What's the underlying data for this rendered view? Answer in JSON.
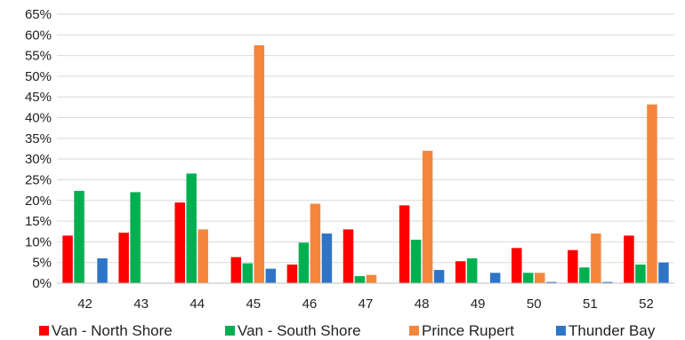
{
  "chart_data": {
    "type": "bar",
    "categories": [
      "42",
      "43",
      "44",
      "45",
      "46",
      "47",
      "48",
      "49",
      "50",
      "51",
      "52"
    ],
    "series": [
      {
        "name": "Van - North Shore",
        "color": "#ff0000",
        "values": [
          11.5,
          12.2,
          19.5,
          6.3,
          4.5,
          13.0,
          18.8,
          5.3,
          8.5,
          8.0,
          11.5
        ]
      },
      {
        "name": "Van - South Shore",
        "color": "#00b050",
        "values": [
          22.3,
          22.0,
          26.5,
          4.8,
          9.8,
          1.7,
          10.5,
          6.0,
          2.5,
          3.8,
          4.5
        ]
      },
      {
        "name": "Prince Rupert",
        "color": "#f4863b",
        "values": [
          0,
          0,
          13.0,
          57.5,
          19.2,
          2.0,
          32.0,
          0,
          2.5,
          12.0,
          43.2
        ]
      },
      {
        "name": "Thunder Bay",
        "color": "#2e75c8",
        "values": [
          6.0,
          0,
          0,
          3.5,
          12.0,
          0,
          3.2,
          2.5,
          0.3,
          0.3,
          5.0
        ]
      }
    ],
    "yticks": [
      "0%",
      "5%",
      "10%",
      "15%",
      "20%",
      "25%",
      "30%",
      "35%",
      "40%",
      "45%",
      "50%",
      "55%",
      "60%",
      "65%"
    ],
    "ylim": [
      0,
      65
    ],
    "grid": true,
    "legend": "bottom"
  }
}
